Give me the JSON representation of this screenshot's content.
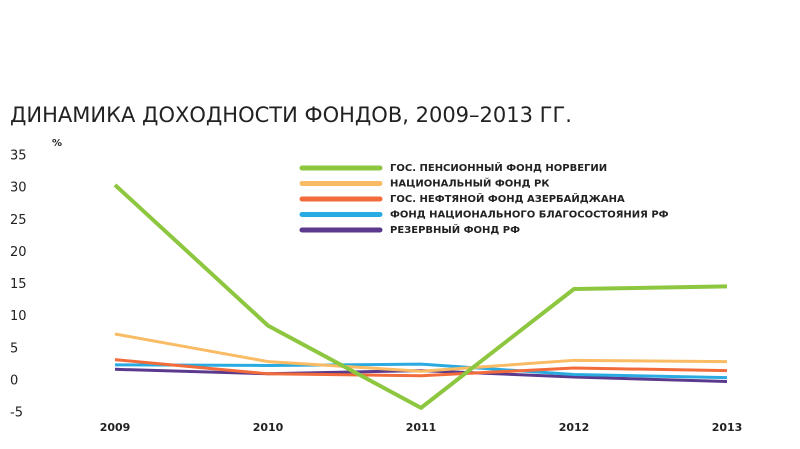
{
  "chart_data": {
    "type": "line",
    "title": "ДИНАМИКА ДОХОДНОСТИ ФОНДОВ, 2009–2013 ГГ.",
    "y_label": "%",
    "x": [
      2009,
      2010,
      2011,
      2012,
      2013
    ],
    "xticks": [
      2009,
      2010,
      2011,
      2012,
      2013
    ],
    "xlim": [
      2009,
      2013
    ],
    "ylim": [
      -5,
      35
    ],
    "yticks": [
      -5,
      0,
      5,
      10,
      15,
      20,
      25,
      30,
      35
    ],
    "grid": false,
    "series": [
      {
        "name": "ГОС. ПЕНСИОННЫЙ ФОНД НОРВЕГИИ",
        "color": "#8dc63f",
        "values": [
          30.5,
          8.6,
          -4.2,
          14.3,
          14.7
        ]
      },
      {
        "name": "НАЦИОНАЛЬНЫЙ ФОНД РК",
        "color": "#f9bb63",
        "values": [
          7.3,
          3.0,
          1.5,
          3.2,
          3.0
        ]
      },
      {
        "name": "ГОС. НЕФТЯНОЙ ФОНД АЗЕРБАЙДЖАНА",
        "color": "#f26b3a",
        "values": [
          3.3,
          1.1,
          0.8,
          2.0,
          1.6
        ]
      },
      {
        "name": "ФОНД НАЦИОНАЛЬНОГО БЛАГОСОСТОЯНИЯ РФ",
        "color": "#29abe2",
        "values": [
          2.5,
          2.4,
          2.6,
          1.0,
          0.5
        ]
      },
      {
        "name": "РЕЗЕРВНЫЙ ФОНД РФ",
        "color": "#5b3a8e",
        "values": [
          1.8,
          1.1,
          1.6,
          0.6,
          -0.1
        ]
      }
    ]
  }
}
